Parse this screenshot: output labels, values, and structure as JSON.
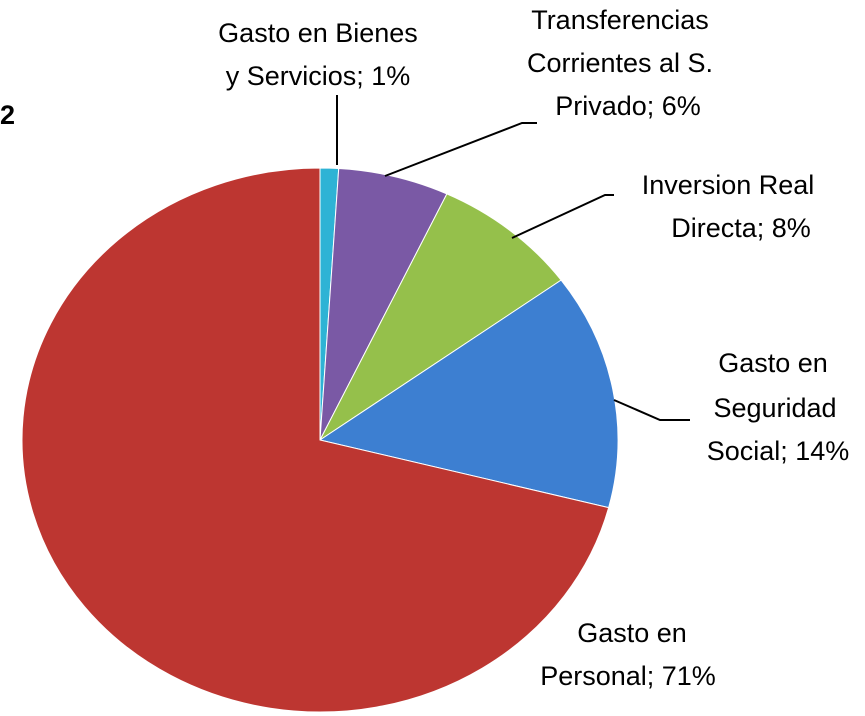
{
  "chart_data": {
    "type": "pie",
    "title": "2",
    "labels": [
      [
        "Gasto en Bienes",
        "y Servicios; 1%"
      ],
      [
        "Transferencias",
        "Corrientes al S.",
        "Privado; 6%"
      ],
      [
        "Inversion Real",
        "Directa; 8%"
      ],
      [
        "Gasto en",
        "Seguridad",
        "Social; 14%"
      ],
      [
        "Gasto en",
        "Personal; 71%"
      ]
    ],
    "values": [
      1,
      6,
      8,
      14,
      71
    ],
    "colors": [
      "#2eb3d5",
      "#7a59a5",
      "#95c04b",
      "#3d7fd1",
      "#bd3631"
    ]
  }
}
